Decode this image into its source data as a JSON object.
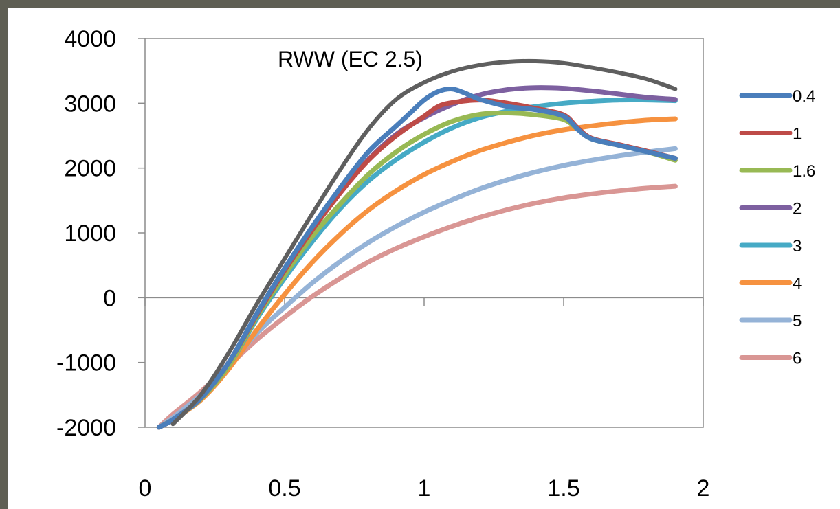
{
  "chart_data": {
    "type": "line",
    "title": "RWW (EC 2.5)",
    "xlabel": "",
    "ylabel": "",
    "xlim": [
      0,
      2
    ],
    "ylim": [
      -2000,
      4000
    ],
    "x_ticks": [
      "0",
      "0.5",
      "1",
      "1.5",
      "2"
    ],
    "y_ticks": [
      "4000",
      "3000",
      "2000",
      "1000",
      "0",
      "-1000",
      "-2000"
    ],
    "grid": false,
    "legend_position": "right",
    "series": [
      {
        "name": "0.4",
        "color": "#4a7ebb",
        "points": [
          [
            0.05,
            -2000
          ],
          [
            0.1,
            -1880
          ],
          [
            0.2,
            -1550
          ],
          [
            0.3,
            -1000
          ],
          [
            0.4,
            -250
          ],
          [
            0.5,
            450
          ],
          [
            0.6,
            1100
          ],
          [
            0.7,
            1700
          ],
          [
            0.8,
            2250
          ],
          [
            0.9,
            2650
          ],
          [
            0.95,
            2850
          ],
          [
            1.0,
            3050
          ],
          [
            1.05,
            3180
          ],
          [
            1.1,
            3220
          ],
          [
            1.15,
            3150
          ],
          [
            1.2,
            3060
          ],
          [
            1.3,
            2950
          ],
          [
            1.4,
            2900
          ],
          [
            1.5,
            2800
          ],
          [
            1.55,
            2600
          ],
          [
            1.6,
            2450
          ],
          [
            1.7,
            2350
          ],
          [
            1.8,
            2250
          ],
          [
            1.9,
            2150
          ]
        ]
      },
      {
        "name": "1",
        "color": "#be4b48",
        "points": [
          [
            0.05,
            -2000
          ],
          [
            0.1,
            -1880
          ],
          [
            0.2,
            -1550
          ],
          [
            0.3,
            -1000
          ],
          [
            0.4,
            -270
          ],
          [
            0.5,
            420
          ],
          [
            0.6,
            1050
          ],
          [
            0.7,
            1620
          ],
          [
            0.8,
            2120
          ],
          [
            0.9,
            2500
          ],
          [
            1.0,
            2800
          ],
          [
            1.05,
            2950
          ],
          [
            1.1,
            3010
          ],
          [
            1.2,
            3050
          ],
          [
            1.3,
            3000
          ],
          [
            1.4,
            2920
          ],
          [
            1.5,
            2820
          ],
          [
            1.55,
            2620
          ],
          [
            1.6,
            2460
          ],
          [
            1.7,
            2360
          ],
          [
            1.8,
            2260
          ],
          [
            1.9,
            2150
          ]
        ]
      },
      {
        "name": "1.6",
        "color": "#98b954",
        "points": [
          [
            0.05,
            -2000
          ],
          [
            0.1,
            -1880
          ],
          [
            0.2,
            -1560
          ],
          [
            0.3,
            -1050
          ],
          [
            0.4,
            -300
          ],
          [
            0.5,
            350
          ],
          [
            0.6,
            950
          ],
          [
            0.7,
            1450
          ],
          [
            0.8,
            1900
          ],
          [
            0.9,
            2250
          ],
          [
            1.0,
            2520
          ],
          [
            1.1,
            2720
          ],
          [
            1.2,
            2830
          ],
          [
            1.3,
            2850
          ],
          [
            1.4,
            2820
          ],
          [
            1.5,
            2750
          ],
          [
            1.55,
            2600
          ],
          [
            1.6,
            2450
          ],
          [
            1.7,
            2350
          ],
          [
            1.8,
            2250
          ],
          [
            1.9,
            2120
          ]
        ]
      },
      {
        "name": "2",
        "color": "#7d60a0",
        "points": [
          [
            0.05,
            -2000
          ],
          [
            0.1,
            -1880
          ],
          [
            0.2,
            -1550
          ],
          [
            0.3,
            -1000
          ],
          [
            0.4,
            -250
          ],
          [
            0.5,
            450
          ],
          [
            0.6,
            1080
          ],
          [
            0.7,
            1650
          ],
          [
            0.8,
            2130
          ],
          [
            0.9,
            2520
          ],
          [
            1.0,
            2780
          ],
          [
            1.1,
            2980
          ],
          [
            1.2,
            3130
          ],
          [
            1.3,
            3210
          ],
          [
            1.4,
            3240
          ],
          [
            1.5,
            3230
          ],
          [
            1.6,
            3190
          ],
          [
            1.7,
            3140
          ],
          [
            1.8,
            3090
          ],
          [
            1.9,
            3060
          ]
        ]
      },
      {
        "name": "3",
        "color": "#46aac5",
        "points": [
          [
            0.05,
            -2000
          ],
          [
            0.1,
            -1880
          ],
          [
            0.2,
            -1560
          ],
          [
            0.3,
            -1050
          ],
          [
            0.4,
            -330
          ],
          [
            0.5,
            300
          ],
          [
            0.6,
            870
          ],
          [
            0.7,
            1380
          ],
          [
            0.8,
            1800
          ],
          [
            0.9,
            2130
          ],
          [
            1.0,
            2400
          ],
          [
            1.1,
            2620
          ],
          [
            1.2,
            2780
          ],
          [
            1.3,
            2880
          ],
          [
            1.4,
            2950
          ],
          [
            1.5,
            3000
          ],
          [
            1.6,
            3030
          ],
          [
            1.7,
            3050
          ],
          [
            1.8,
            3050
          ],
          [
            1.9,
            3040
          ]
        ]
      },
      {
        "name": "4",
        "color": "#f69240",
        "points": [
          [
            0.05,
            -2000
          ],
          [
            0.1,
            -1880
          ],
          [
            0.2,
            -1580
          ],
          [
            0.3,
            -1100
          ],
          [
            0.4,
            -500
          ],
          [
            0.5,
            50
          ],
          [
            0.6,
            550
          ],
          [
            0.7,
            980
          ],
          [
            0.8,
            1350
          ],
          [
            0.9,
            1650
          ],
          [
            1.0,
            1900
          ],
          [
            1.1,
            2100
          ],
          [
            1.2,
            2270
          ],
          [
            1.3,
            2400
          ],
          [
            1.4,
            2510
          ],
          [
            1.5,
            2590
          ],
          [
            1.6,
            2650
          ],
          [
            1.7,
            2700
          ],
          [
            1.8,
            2740
          ],
          [
            1.9,
            2760
          ]
        ]
      },
      {
        "name": "5",
        "color": "#95b3d7",
        "points": [
          [
            0.05,
            -2000
          ],
          [
            0.1,
            -1850
          ],
          [
            0.2,
            -1500
          ],
          [
            0.3,
            -1050
          ],
          [
            0.4,
            -550
          ],
          [
            0.5,
            -150
          ],
          [
            0.6,
            230
          ],
          [
            0.7,
            560
          ],
          [
            0.8,
            850
          ],
          [
            0.9,
            1100
          ],
          [
            1.0,
            1320
          ],
          [
            1.1,
            1510
          ],
          [
            1.2,
            1680
          ],
          [
            1.3,
            1820
          ],
          [
            1.4,
            1940
          ],
          [
            1.5,
            2040
          ],
          [
            1.6,
            2120
          ],
          [
            1.7,
            2190
          ],
          [
            1.8,
            2250
          ],
          [
            1.9,
            2300
          ]
        ]
      },
      {
        "name": "6",
        "color": "#d99694",
        "points": [
          [
            0.05,
            -2000
          ],
          [
            0.1,
            -1800
          ],
          [
            0.2,
            -1450
          ],
          [
            0.3,
            -1050
          ],
          [
            0.4,
            -650
          ],
          [
            0.5,
            -300
          ],
          [
            0.6,
            20
          ],
          [
            0.7,
            300
          ],
          [
            0.8,
            550
          ],
          [
            0.9,
            760
          ],
          [
            1.0,
            940
          ],
          [
            1.1,
            1100
          ],
          [
            1.2,
            1240
          ],
          [
            1.3,
            1360
          ],
          [
            1.4,
            1460
          ],
          [
            1.5,
            1540
          ],
          [
            1.6,
            1600
          ],
          [
            1.7,
            1650
          ],
          [
            1.8,
            1690
          ],
          [
            1.9,
            1720
          ]
        ]
      },
      {
        "color": "#5f5f5f",
        "points": [
          [
            0.1,
            -1950
          ],
          [
            0.2,
            -1500
          ],
          [
            0.3,
            -850
          ],
          [
            0.4,
            -100
          ],
          [
            0.5,
            600
          ],
          [
            0.6,
            1300
          ],
          [
            0.7,
            1980
          ],
          [
            0.8,
            2600
          ],
          [
            0.9,
            3060
          ],
          [
            1.0,
            3320
          ],
          [
            1.1,
            3490
          ],
          [
            1.2,
            3590
          ],
          [
            1.3,
            3640
          ],
          [
            1.4,
            3650
          ],
          [
            1.5,
            3620
          ],
          [
            1.6,
            3550
          ],
          [
            1.7,
            3470
          ],
          [
            1.8,
            3370
          ],
          [
            1.9,
            3220
          ]
        ]
      }
    ]
  }
}
